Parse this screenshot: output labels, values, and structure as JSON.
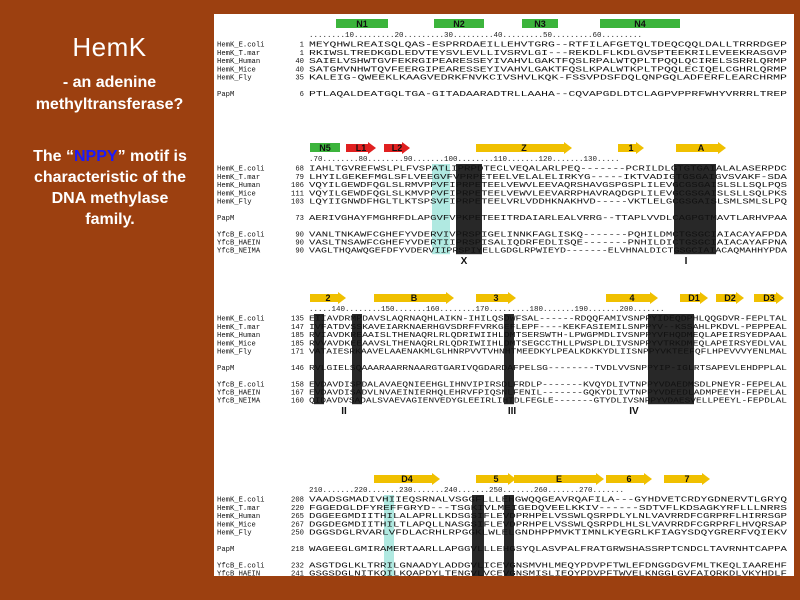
{
  "slide": {
    "title": "HemK",
    "subtitle_line1": "- an adenine",
    "subtitle_line2": "methyltransferase?",
    "motif_pre": "The “",
    "motif_highlight": "NPPY",
    "motif_post": "” motif is",
    "motif_line2": "characteristic of the",
    "motif_line3": "DNA methylase",
    "motif_line4": "family.",
    "background_color": "#9c4010",
    "highlight_color": "#1a1aff"
  },
  "alignment": {
    "blocks": [
      {
        "features": [
          "N1",
          "N2",
          "N3",
          "N4"
        ],
        "ruler": "........10.........20.........30.........40.........50.........60.........",
        "rows": [
          {
            "name": "HemK_E.coli",
            "num": "1",
            "seq": "MEYQHWLREAISQLQAS-ESPRRDAEILLEHVTGRG--RTFILAFGETQLTDEQCQQLDALLTRRRDGEP"
          },
          {
            "name": "HemK_T.mar",
            "num": "1",
            "seq": "RKIWSLTREDKGDLEDVTEYSVLEVLLIVSRVLGI---REKDLFLKDLGVSPTEEKRILEVEEKRASGVP"
          },
          {
            "name": "HemK_Human",
            "num": "40",
            "seq": "SAIELVSHWTGVFEKRGIPEARESSEYIVAHVLGAKTFQSLRPALWTQPLTPQQLQCIRELSSRRLQRMP"
          },
          {
            "name": "HemK_Mice",
            "num": "40",
            "seq": "SATGMVNHWTQVFEERGIPEARESSEYIVAHVLGAKTFQSLKPALWTKPLTPQQLECIQELCGHRLQRMP"
          },
          {
            "name": "HemK_Fly",
            "num": "35",
            "seq": "KALEIG-QWEEKLKAAGVEDRKFNVKCIVSHVLKQK-FSSVPDSFDQLQNPGQLADFERFLEARCHRMP"
          },
          {
            "name": "",
            "num": "",
            "seq": ""
          },
          {
            "name": "PapM",
            "num": "6",
            "seq": "PTLAQALDEATGQLTGA-GITADAARADTRLLAAHA--CQVAPGDLDTCLAGPVPPRFWHYVRRRLTREP"
          }
        ]
      },
      {
        "features": [
          "N5",
          "L1",
          "L2",
          "Z",
          "1",
          "A"
        ],
        "ruler": ".70........80........90.......100........110.......120.......130.....",
        "rows": [
          {
            "name": "HemK_E.coli",
            "num": "68",
            "seq": "IAHLTGVREFWSLPLFVSPATLIPRPDTECLVEQALARLPEQ-------PCRILDLGTGTGAIALALASERPDC"
          },
          {
            "name": "HemK_T.mar",
            "num": "79",
            "seq": "LHYILGEKEFMGLSFLVEEGVFVPRPETEELVELALELIRKYG-----IKTVADIGTGSGAIGVSVAKF-SDA"
          },
          {
            "name": "HemK_Human",
            "num": "106",
            "seq": "VQYILGEWDFQGLSLRMVPPVFIPRPETEELVEWVLEEVAQRSHAVGSPGSPLILEVGCGSGAISLSLLSQLPQS"
          },
          {
            "name": "HemK_Mice",
            "num": "111",
            "seq": "VQYILGEWDFQGLSLKMVPPVFIPRPETEELVEWVLEEVARRPHAVRAQDGPLILEVGCGSGAISLSLLSQLPKS"
          },
          {
            "name": "HemK_Fly",
            "num": "103",
            "seq": "LQYIIGNWDFHGLTLKTSPSVFIPRPETEELVRLVDDHKNAKHVD-----VKTLELGCGSGAISLSMLSMLSLPQ"
          },
          {
            "name": "",
            "num": "",
            "seq": ""
          },
          {
            "name": "PapM",
            "num": "73",
            "seq": "AERIVGHAYFMGHRFDLAPGVFVPKPETEEITRDAIARLEALVRRG--TTAPLVVDLCAGPGTMAVTLARHVPAA"
          },
          {
            "name": "",
            "num": "",
            "seq": ""
          },
          {
            "name": "YfcB_E.coli",
            "num": "90",
            "seq": "VANLTNKAWFCGHEFYVDERVIVPRSPIGELINNKFAGLISKQ-------PQHILDMCTGSGCIAIACAYAFPDA"
          },
          {
            "name": "YfcB_HAEIN",
            "num": "90",
            "seq": "VASLTNSAWFCGHEFYVDERTIIPRSPISALIQDRFEDLISQE-------PNHILDICTGSGCIAIACAYAFPNA"
          },
          {
            "name": "YfcB_NEIMA",
            "num": "90",
            "seq": "VAGLTHQAWQGEFDFYVDERVIIPRSPIYELLGDGLRPWIEYD-------ELVHNALDICTGSGCIAIACAQMAHHYPDA"
          }
        ],
        "motif_labels": [
          "X",
          "I"
        ]
      },
      {
        "features": [
          "2",
          "B",
          "3",
          "4",
          "D1",
          "D2",
          "D3"
        ],
        "ruler": ".....140........150.......160........170.........180.......190.......200.......",
        "rows": [
          {
            "name": "HemK_E.coli",
            "num": "135",
            "seq": "EIIAVDRMPDAVSLAQRNAQHLAIKN-IHILQSDWFSAL------RDQQFAMIVSNPPYIDEQDPHLQQGDVR-FEPLTAL"
          },
          {
            "name": "HemK_T.mar",
            "num": "147",
            "seq": "IVFATDVSSKAVEIARKNAERHGVSDRFFVRKGEFLEPF----KEKFASIEMILSNPPYV--KSSAHLPKDVL-PEPPEAL"
          },
          {
            "name": "HemK_Human",
            "num": "185",
            "seq": "RVIAVDKREAAISLTHENAQRLRLQDRIWIIHLDMTSERSWTH-LPWGPMDLIVSNPPYVFHQDMEQLAPEIRSYEDPAAL"
          },
          {
            "name": "HemK_Mice",
            "num": "185",
            "seq": "RVVAVDKEEAAVSLTHENAQRLRLQDRIWIIHLDMTSEGCCTHLLPWSPLDLIVSNPPYVTRKDMEQLAPEIRSYEDLVAL"
          },
          {
            "name": "HemK_Fly",
            "num": "171",
            "seq": "VATAIESRKAAVELAAENAKMLGLHNRPVVTVHNHTMEEDKYLPEALKDKKYDLIISNPPYVKTEEFQFLHPEVVVYENLMAL"
          },
          {
            "name": "",
            "num": "",
            "seq": ""
          },
          {
            "name": "PapM",
            "num": "146",
            "seq": "RVLGIELSQAAARAARRNAARGTGARIVQGDARDAFPELSG--------TVDLVVSNPPYIP-IGLRTSAPEVLEHDPPLAL"
          },
          {
            "name": "",
            "num": "",
            "seq": ""
          },
          {
            "name": "YfcB_E.coli",
            "num": "158",
            "seq": "EVDAVDISPDALAVAEQNIEEHGLIHNVIPIRSDLFRDLP-------KVQYDLIVTNPPYVDAEDMSDLPNEYR-FEPELAL"
          },
          {
            "name": "YfcB_HAEIN",
            "num": "167",
            "seq": "EVDAVDISADVLNVAEINIERHQLEHRVFPIQSNLFENIL-------GQKYDLIVTNPPYVDEEDLADMPEEYH-FEPELAL"
          },
          {
            "name": "YfcB_NEIMA",
            "num": "160",
            "seq": "QIDAVDVSADALSVAEVAGIENVEDYGLEEIRLIHTDLFEGLE-------GTYDLIVSNPPYVDAESVELLPEEYL-FEPDLAL"
          }
        ],
        "motif_labels": [
          "II",
          "III",
          "IV"
        ]
      },
      {
        "features": [
          "D4",
          "5",
          "E",
          "6",
          "7"
        ],
        "ruler": "210.......220.......230.......240.......250.......260.......270.......",
        "rows": [
          {
            "name": "HemK_E.coli",
            "num": "208",
            "seq": "VAADSGMADIVHIIEQSRNALVSGGFLLLEHGWQQGEAVRQAFILA---GYHDVETCRDYGDNERVTLGRYQ"
          },
          {
            "name": "HemK_T.mar",
            "num": "220",
            "seq": "FGGEDGLDFYREFFGRYD---TSGKIVLMEIGEDQVEELKKIV------SDTVFLKDSAGKYRFLLLNRRS"
          },
          {
            "name": "HemK_Human",
            "num": "265",
            "seq": "DGGEEGMDIITHILALAPRLLKDSGSIFLEVDPRHPELVSSWLQSRPDLYLNLVAVRRDFCGRPRFLHIRRSGP"
          },
          {
            "name": "HemK_Mice",
            "num": "267",
            "seq": "DGGDEGMDIITHILTLAPQLLNASGSIFLEVDPRHPELVSSWLQSRPDLHLSLVAVRRDFCGRPRFLHVQRSAP"
          },
          {
            "name": "HemK_Fly",
            "num": "250",
            "seq": "DGGSDGLRVARLVFDLACRHLRPGGKLWLELGNDHPPMVKTIMNLKYEGRLKFIAGYSDQYGRERFVQIEKV"
          },
          {
            "name": "",
            "num": "",
            "seq": ""
          },
          {
            "name": "PapM",
            "num": "218",
            "seq": "WAGEEGLGMIRAMERTAARLLAPGGVLLLEHGSYQLASVPALFRATGRWSHASSRPTCNDCLTAVRNHTCAPPA"
          },
          {
            "name": "",
            "num": "",
            "seq": ""
          },
          {
            "name": "YfcB_E.coli",
            "num": "232",
            "seq": "ASGTDGLKLTRRILGNAADYLADDGVLICEVGNSMVHLMEQYPDVPFTWLEFDNGGDGVFMLTKEQLIAAREHF"
          },
          {
            "name": "YfcB_HAEIN",
            "num": "241",
            "seq": "GSGSDGLNITKQILKQAPDYLTENGVLVCEVGNSMISLIEQYPDVPFTWVELKNGGLGVFAIQRKDLVKYHDLF"
          },
          {
            "name": "YfcB_NEIMA",
            "num": "233",
            "seq": "GSGADGLDATRQILLNAAKFLNPKGVLLVEIGHNRDVLEAAYPELPFTWLETSGGDGFVFLLTREQLLGEE"
          }
        ],
        "motif_labels": [
          "V",
          "VI"
        ]
      }
    ]
  }
}
